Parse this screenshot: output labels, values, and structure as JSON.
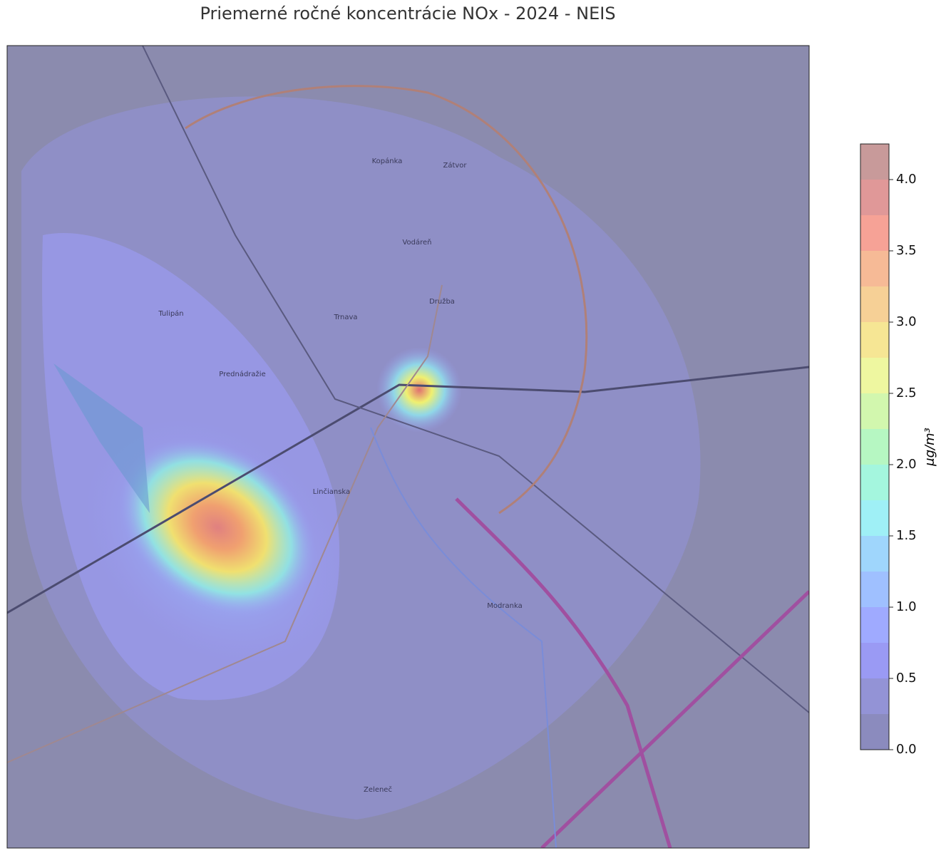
{
  "chart_data": {
    "type": "heatmap",
    "title": "Priemerné ročné koncentrácie NOx - 2024 - NEIS",
    "colorbar_label": "μg/m³",
    "clim": [
      0,
      4.25
    ],
    "levels": [
      0,
      0.25,
      0.5,
      0.75,
      1,
      1.25,
      1.5,
      1.75,
      2,
      2.25,
      2.5,
      2.75,
      3,
      3.25,
      3.5,
      3.75,
      4,
      4.25
    ],
    "colors": [
      "#8b8bbe",
      "#9393d6",
      "#9a9af4",
      "#9faaff",
      "#9fc0ff",
      "#9fd6fc",
      "#9ff0f6",
      "#a4f6de",
      "#b6f7c2",
      "#d2f7ae",
      "#eef7a0",
      "#f6e694",
      "#f6d096",
      "#f6ba96",
      "#f6a296",
      "#e09898",
      "#c89a9a"
    ],
    "ticks": [
      {
        "value": 0,
        "label": "0.0"
      },
      {
        "value": 0.5,
        "label": "0.5"
      },
      {
        "value": 1,
        "label": "1.0"
      },
      {
        "value": 1.5,
        "label": "1.5"
      },
      {
        "value": 2,
        "label": "2.0"
      },
      {
        "value": 2.5,
        "label": "2.5"
      },
      {
        "value": 3,
        "label": "3.0"
      },
      {
        "value": 3.5,
        "label": "3.5"
      },
      {
        "value": 4,
        "label": "4.0"
      }
    ],
    "places": [
      "Kopánka",
      "Zátvor",
      "Vodáreň",
      "Trnava",
      "Družba",
      "Prednádražie",
      "Linčianska",
      "Modranka",
      "Zeleneč",
      "Tulipán"
    ]
  }
}
